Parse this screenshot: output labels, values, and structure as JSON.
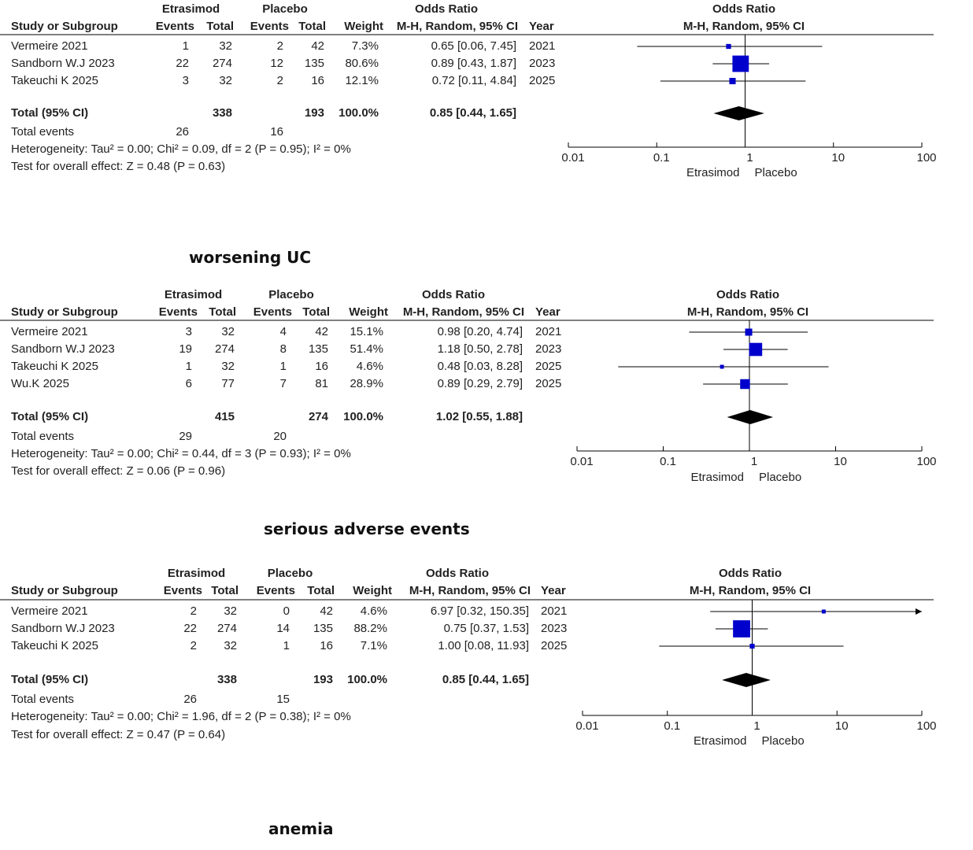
{
  "colors": {
    "square": "#0000cc",
    "diamond": "#000000",
    "line": "#000000"
  },
  "captions": [
    "worsening UC",
    "serious adverse events",
    "anemia"
  ],
  "chart_data": [
    {
      "type": "forest",
      "group_headers": [
        "Etrasimod",
        "Placebo"
      ],
      "columns": [
        "Study or Subgroup",
        "Events",
        "Total",
        "Events",
        "Total",
        "Weight",
        "M-H, Random, 95% CI",
        "Year"
      ],
      "or_header": "Odds Ratio",
      "or_subheader": "M-H, Random, 95% CI",
      "studies": [
        {
          "name": "Vermeire 2021",
          "e1": "1",
          "t1": "32",
          "e2": "2",
          "t2": "42",
          "weight": "7.3%",
          "ci_text": "0.65 [0.06, 7.45]",
          "year": "2021",
          "or": 0.65,
          "lo": 0.06,
          "hi": 7.45,
          "w": 7.3
        },
        {
          "name": "Sandborn W.J 2023",
          "e1": "22",
          "t1": "274",
          "e2": "12",
          "t2": "135",
          "weight": "80.6%",
          "ci_text": "0.89 [0.43, 1.87]",
          "year": "2023",
          "or": 0.89,
          "lo": 0.43,
          "hi": 1.87,
          "w": 80.6
        },
        {
          "name": "Takeuchi K 2025",
          "e1": "3",
          "t1": "32",
          "e2": "2",
          "t2": "16",
          "weight": "12.1%",
          "ci_text": "0.72 [0.11, 4.84]",
          "year": "2025",
          "or": 0.72,
          "lo": 0.11,
          "hi": 4.84,
          "w": 12.1
        }
      ],
      "total": {
        "label": "Total (95% CI)",
        "t1": "338",
        "t2": "193",
        "weight": "100.0%",
        "ci_text": "0.85 [0.44, 1.65]",
        "or": 0.85,
        "lo": 0.44,
        "hi": 1.65
      },
      "total_events": {
        "label": "Total events",
        "e1": "26",
        "e2": "16"
      },
      "heterogeneity": "Heterogeneity: Tau² = 0.00; Chi² = 0.09, df = 2 (P = 0.95); I² = 0%",
      "overall": "Test for overall effect: Z = 0.48 (P = 0.63)",
      "axis": {
        "scale": "log",
        "ticks": [
          "0.01",
          "0.1",
          "1",
          "10",
          "100"
        ],
        "range": [
          0.01,
          100
        ]
      },
      "axis_left_label": "Etrasimod",
      "axis_right_label": "Placebo"
    },
    {
      "type": "forest",
      "group_headers": [
        "Etrasimod",
        "Placebo"
      ],
      "columns": [
        "Study or Subgroup",
        "Events",
        "Total",
        "Events",
        "Total",
        "Weight",
        "M-H, Random, 95% CI",
        "Year"
      ],
      "or_header": "Odds Ratio",
      "or_subheader": "M-H, Random, 95% CI",
      "studies": [
        {
          "name": "Vermeire 2021",
          "e1": "3",
          "t1": "32",
          "e2": "4",
          "t2": "42",
          "weight": "15.1%",
          "ci_text": "0.98 [0.20, 4.74]",
          "year": "2021",
          "or": 0.98,
          "lo": 0.2,
          "hi": 4.74,
          "w": 15.1
        },
        {
          "name": "Sandborn W.J 2023",
          "e1": "19",
          "t1": "274",
          "e2": "8",
          "t2": "135",
          "weight": "51.4%",
          "ci_text": "1.18 [0.50, 2.78]",
          "year": "2023",
          "or": 1.18,
          "lo": 0.5,
          "hi": 2.78,
          "w": 51.4
        },
        {
          "name": "Takeuchi K 2025",
          "e1": "1",
          "t1": "32",
          "e2": "1",
          "t2": "16",
          "weight": "4.6%",
          "ci_text": "0.48 [0.03, 8.28]",
          "year": "2025",
          "or": 0.48,
          "lo": 0.03,
          "hi": 8.28,
          "w": 4.6
        },
        {
          "name": "Wu.K 2025",
          "e1": "6",
          "t1": "77",
          "e2": "7",
          "t2": "81",
          "weight": "28.9%",
          "ci_text": "0.89 [0.29, 2.79]",
          "year": "2025",
          "or": 0.89,
          "lo": 0.29,
          "hi": 2.79,
          "w": 28.9
        }
      ],
      "total": {
        "label": "Total (95% CI)",
        "t1": "415",
        "t2": "274",
        "weight": "100.0%",
        "ci_text": "1.02 [0.55, 1.88]",
        "or": 1.02,
        "lo": 0.55,
        "hi": 1.88
      },
      "total_events": {
        "label": "Total events",
        "e1": "29",
        "e2": "20"
      },
      "heterogeneity": "Heterogeneity: Tau² = 0.00; Chi² = 0.44, df = 3 (P = 0.93); I² = 0%",
      "overall": "Test for overall effect: Z = 0.06 (P = 0.96)",
      "axis": {
        "scale": "log",
        "ticks": [
          "0.01",
          "0.1",
          "1",
          "10",
          "100"
        ],
        "range": [
          0.01,
          100
        ]
      },
      "axis_left_label": "Etrasimod",
      "axis_right_label": "Placebo"
    },
    {
      "type": "forest",
      "group_headers": [
        "Etrasimod",
        "Placebo"
      ],
      "columns": [
        "Study or Subgroup",
        "Events",
        "Total",
        "Events",
        "Total",
        "Weight",
        "M-H, Random, 95% CI",
        "Year"
      ],
      "or_header": "Odds Ratio",
      "or_subheader": "M-H, Random, 95% CI",
      "studies": [
        {
          "name": "Vermeire 2021",
          "e1": "2",
          "t1": "32",
          "e2": "0",
          "t2": "42",
          "weight": "4.6%",
          "ci_text": "6.97 [0.32, 150.35]",
          "year": "2021",
          "or": 6.97,
          "lo": 0.32,
          "hi": 150.35,
          "w": 4.6
        },
        {
          "name": "Sandborn W.J 2023",
          "e1": "22",
          "t1": "274",
          "e2": "14",
          "t2": "135",
          "weight": "88.2%",
          "ci_text": "0.75 [0.37, 1.53]",
          "year": "2023",
          "or": 0.75,
          "lo": 0.37,
          "hi": 1.53,
          "w": 88.2
        },
        {
          "name": "Takeuchi K 2025",
          "e1": "2",
          "t1": "32",
          "e2": "1",
          "t2": "16",
          "weight": "7.1%",
          "ci_text": "1.00 [0.08, 11.93]",
          "year": "2025",
          "or": 1.0,
          "lo": 0.08,
          "hi": 11.93,
          "w": 7.1
        }
      ],
      "total": {
        "label": "Total (95% CI)",
        "t1": "338",
        "t2": "193",
        "weight": "100.0%",
        "ci_text": "0.85 [0.44, 1.65]",
        "or": 0.85,
        "lo": 0.44,
        "hi": 1.65
      },
      "total_events": {
        "label": "Total events",
        "e1": "26",
        "e2": "15"
      },
      "heterogeneity": "Heterogeneity: Tau² = 0.00; Chi² = 1.96, df = 2 (P = 0.38); I² = 0%",
      "overall": "Test for overall effect: Z = 0.47 (P = 0.64)",
      "axis": {
        "scale": "log",
        "ticks": [
          "0.01",
          "0.1",
          "1",
          "10",
          "100"
        ],
        "range": [
          0.01,
          100
        ]
      },
      "axis_left_label": "Etrasimod",
      "axis_right_label": "Placebo"
    }
  ]
}
